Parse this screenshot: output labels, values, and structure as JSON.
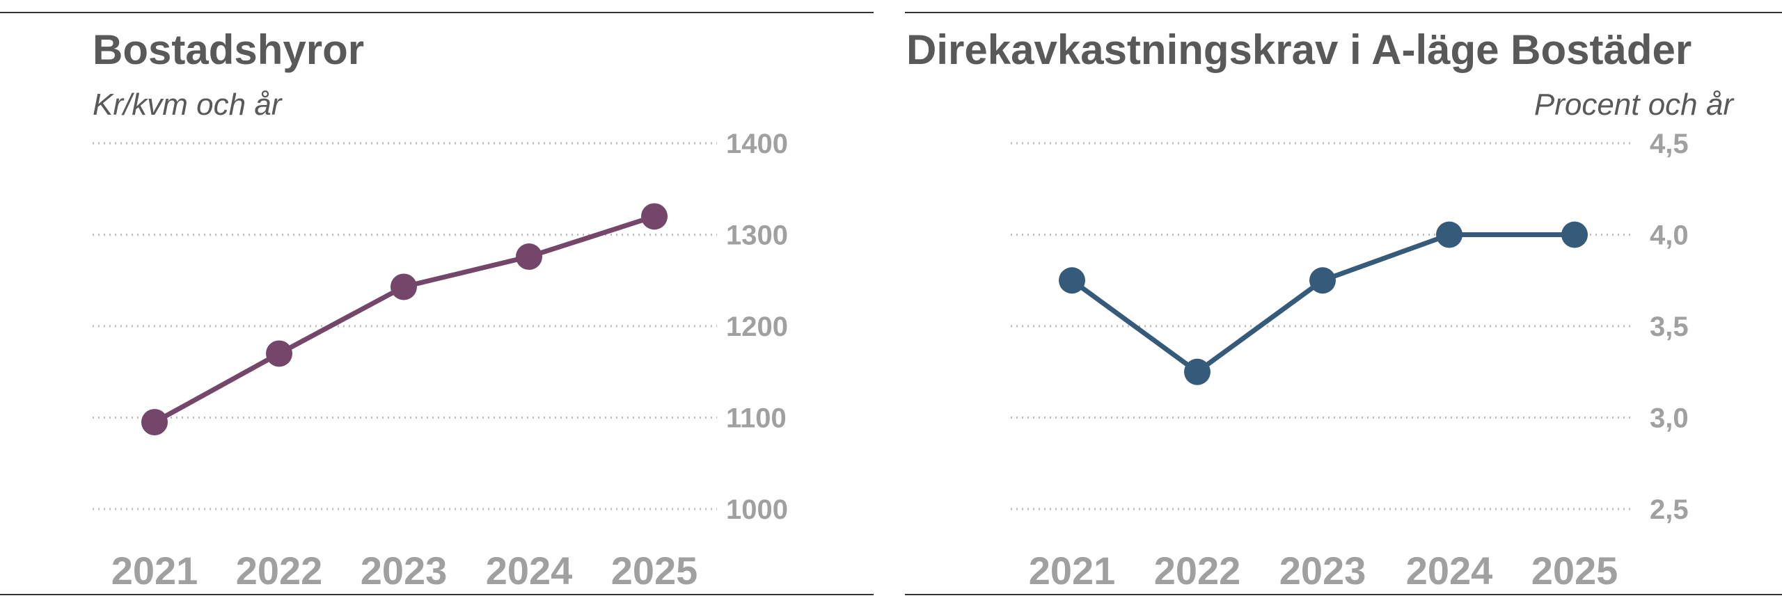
{
  "chart_data": [
    {
      "type": "line",
      "title": "Bostadshyror",
      "subtitle": "Kr/kvm och år",
      "categories": [
        "2021",
        "2022",
        "2023",
        "2024",
        "2025"
      ],
      "series": [
        {
          "values": [
            1095,
            1170,
            1243,
            1276,
            1320
          ]
        }
      ],
      "yticks": [
        "1400",
        "1300",
        "1200",
        "1100",
        "1000"
      ],
      "ylim": [
        1000,
        1400
      ],
      "grid": true,
      "color": "#74476a"
    },
    {
      "type": "line",
      "title": "Direkavkastningskrav i A-läge Bostäder",
      "subtitle": "Procent och år",
      "categories": [
        "2021",
        "2022",
        "2023",
        "2024",
        "2025"
      ],
      "series": [
        {
          "values": [
            3.75,
            3.25,
            3.75,
            4.0,
            4.0
          ]
        }
      ],
      "yticks": [
        "4,5",
        "4,0",
        "3,5",
        "3,0",
        "2,5"
      ],
      "ylim": [
        2.5,
        4.5
      ],
      "grid": true,
      "color": "#365b7a"
    }
  ]
}
